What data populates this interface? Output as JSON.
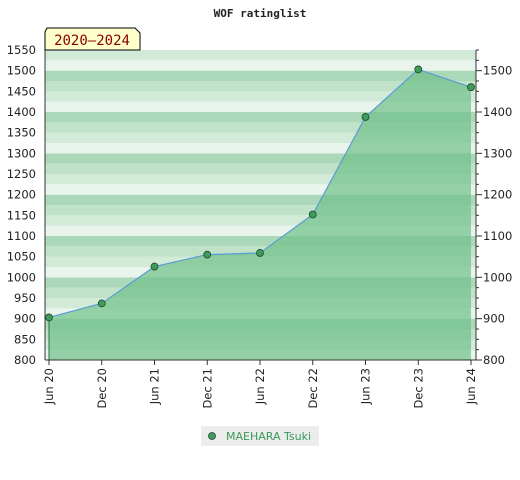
{
  "chart_data": {
    "type": "area",
    "title": "WOF ratinglist",
    "badge": "2020–2024",
    "x_labels": [
      "Jun 20",
      "Dec 20",
      "Jun 21",
      "Dec 21",
      "Jun 22",
      "Dec 22",
      "Jun 23",
      "Dec 23",
      "Jun 24"
    ],
    "series": [
      {
        "name": "MAEHARA Tsuki",
        "values": [
          903,
          937,
          1026,
          1055,
          1059,
          1152,
          1388,
          1503,
          1460
        ]
      }
    ],
    "ylim": [
      800,
      1550
    ],
    "y_ticks_left": [
      800,
      850,
      900,
      950,
      1000,
      1050,
      1100,
      1150,
      1200,
      1250,
      1300,
      1350,
      1400,
      1450,
      1500,
      1550
    ],
    "y_ticks_right": [
      800,
      900,
      1000,
      1100,
      1200,
      1300,
      1400,
      1500
    ],
    "legend_position": "bottom-center",
    "colors": {
      "fill": "#6fc089",
      "line": "#5b9bd5",
      "marker": "#3f9a5c",
      "legend_text": "#3a9a5a",
      "badge_bg": "#ffffcc",
      "badge_text": "#8b0000"
    }
  }
}
